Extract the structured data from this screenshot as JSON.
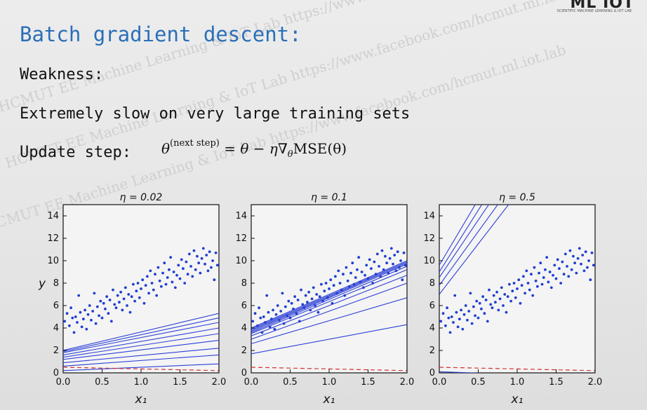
{
  "logo": {
    "text": "ML IOT",
    "sub": "SCIENTIFIC MACHINE LEARNING & IOT LAB"
  },
  "title": "Batch gradient descent:",
  "weakness_label": "Weakness:",
  "weakness_text": "Extremely slow on very large training sets",
  "update_label": "Update step:",
  "formula": {
    "lhs": "θ",
    "sup": "(next step)",
    "rhs": "= θ − η∇",
    "sub": "θ",
    "tail": "MSE(θ)"
  },
  "watermark": [
    "HCMUT EE Machine Learning & IoT Lab https://www.facebook.com/hcmut.ml.iot.lab"
  ],
  "chart_data": [
    {
      "type": "scatter",
      "title": "η = 0.02",
      "xlabel": "x₁",
      "ylabel": "y",
      "xlim": [
        0,
        2
      ],
      "ylim": [
        0,
        15
      ],
      "xticks": [
        "0.0",
        "0.5",
        "1.0",
        "1.5",
        "2.0"
      ],
      "yticks": [
        "0",
        "2",
        "4",
        "6",
        "8",
        "10",
        "12",
        "14"
      ],
      "initial_line": {
        "y0": 0.5,
        "y1": 0.2
      },
      "lines": [
        {
          "y0": 0.2,
          "y1": 0.8
        },
        {
          "y0": 0.6,
          "y1": 1.6
        },
        {
          "y0": 0.9,
          "y1": 2.2
        },
        {
          "y0": 1.2,
          "y1": 2.9
        },
        {
          "y0": 1.4,
          "y1": 3.5
        },
        {
          "y0": 1.6,
          "y1": 4.0
        },
        {
          "y0": 1.8,
          "y1": 4.5
        },
        {
          "y0": 1.9,
          "y1": 4.9
        },
        {
          "y0": 2.0,
          "y1": 5.3
        }
      ]
    },
    {
      "type": "scatter",
      "title": "η = 0.1",
      "xlabel": "x₁",
      "ylabel": "",
      "xlim": [
        0,
        2
      ],
      "ylim": [
        0,
        15
      ],
      "xticks": [
        "0.0",
        "0.5",
        "1.0",
        "1.5",
        "2.0"
      ],
      "yticks": [
        "0",
        "2",
        "4",
        "6",
        "8",
        "10",
        "12",
        "14"
      ],
      "initial_line": {
        "y0": 0.5,
        "y1": 0.2
      },
      "lines": [
        {
          "y0": 1.7,
          "y1": 4.3
        },
        {
          "y0": 2.6,
          "y1": 6.7
        },
        {
          "y0": 3.0,
          "y1": 8.0
        },
        {
          "y0": 3.3,
          "y1": 8.7
        },
        {
          "y0": 3.5,
          "y1": 9.2
        },
        {
          "y0": 3.6,
          "y1": 9.5
        },
        {
          "y0": 3.7,
          "y1": 9.7
        },
        {
          "y0": 3.8,
          "y1": 9.8
        },
        {
          "y0": 3.9,
          "y1": 9.9
        },
        {
          "y0": 4.0,
          "y1": 10.0
        }
      ]
    },
    {
      "type": "scatter",
      "title": "η = 0.5",
      "xlabel": "x₁",
      "ylabel": "",
      "xlim": [
        0,
        2
      ],
      "ylim": [
        0,
        15
      ],
      "xticks": [
        "0.0",
        "0.5",
        "1.0",
        "1.5",
        "2.0"
      ],
      "yticks": [
        "0",
        "2",
        "4",
        "6",
        "8",
        "10",
        "12",
        "14"
      ],
      "initial_line": {
        "y0": 0.5,
        "y1": 0.2
      },
      "lines": [
        {
          "y0": 7.0,
          "y1": 25.0
        },
        {
          "y0": 7.8,
          "y1": 27.0
        },
        {
          "y0": 8.5,
          "y1": 29.0
        },
        {
          "y0": 9.0,
          "y1": 31.0
        },
        {
          "y0": 9.6,
          "y1": 33.0
        },
        {
          "y0": 0.1,
          "y1": -0.4
        }
      ]
    }
  ],
  "scatter_points": [
    [
      0.02,
      4.6
    ],
    [
      0.05,
      5.3
    ],
    [
      0.08,
      4.2
    ],
    [
      0.1,
      5.8
    ],
    [
      0.12,
      4.9
    ],
    [
      0.14,
      3.6
    ],
    [
      0.16,
      5.0
    ],
    [
      0.18,
      4.5
    ],
    [
      0.2,
      6.9
    ],
    [
      0.22,
      5.4
    ],
    [
      0.24,
      4.1
    ],
    [
      0.26,
      4.8
    ],
    [
      0.28,
      5.6
    ],
    [
      0.3,
      3.9
    ],
    [
      0.32,
      5.2
    ],
    [
      0.34,
      6.0
    ],
    [
      0.36,
      4.7
    ],
    [
      0.38,
      5.5
    ],
    [
      0.4,
      7.1
    ],
    [
      0.42,
      4.4
    ],
    [
      0.44,
      5.9
    ],
    [
      0.46,
      5.1
    ],
    [
      0.48,
      6.4
    ],
    [
      0.5,
      4.9
    ],
    [
      0.52,
      6.2
    ],
    [
      0.54,
      5.7
    ],
    [
      0.56,
      6.8
    ],
    [
      0.58,
      5.3
    ],
    [
      0.6,
      6.5
    ],
    [
      0.62,
      4.6
    ],
    [
      0.64,
      7.4
    ],
    [
      0.66,
      6.1
    ],
    [
      0.68,
      5.8
    ],
    [
      0.7,
      6.9
    ],
    [
      0.72,
      6.3
    ],
    [
      0.74,
      7.2
    ],
    [
      0.76,
      5.6
    ],
    [
      0.78,
      6.6
    ],
    [
      0.8,
      7.6
    ],
    [
      0.82,
      6.0
    ],
    [
      0.84,
      7.0
    ],
    [
      0.86,
      5.4
    ],
    [
      0.88,
      6.8
    ],
    [
      0.9,
      7.9
    ],
    [
      0.92,
      6.4
    ],
    [
      0.94,
      7.3
    ],
    [
      0.96,
      8.0
    ],
    [
      0.98,
      6.7
    ],
    [
      1.0,
      7.5
    ],
    [
      1.02,
      8.3
    ],
    [
      1.04,
      6.2
    ],
    [
      1.06,
      7.8
    ],
    [
      1.08,
      8.6
    ],
    [
      1.1,
      7.1
    ],
    [
      1.12,
      9.1
    ],
    [
      1.14,
      8.0
    ],
    [
      1.16,
      7.4
    ],
    [
      1.18,
      8.8
    ],
    [
      1.2,
      6.9
    ],
    [
      1.22,
      9.4
    ],
    [
      1.24,
      8.2
    ],
    [
      1.26,
      7.7
    ],
    [
      1.28,
      8.9
    ],
    [
      1.3,
      9.8
    ],
    [
      1.32,
      7.9
    ],
    [
      1.34,
      8.5
    ],
    [
      1.36,
      9.2
    ],
    [
      1.38,
      10.3
    ],
    [
      1.4,
      8.1
    ],
    [
      1.42,
      9.0
    ],
    [
      1.44,
      7.6
    ],
    [
      1.46,
      8.7
    ],
    [
      1.48,
      9.6
    ],
    [
      1.5,
      8.4
    ],
    [
      1.52,
      10.1
    ],
    [
      1.54,
      9.3
    ],
    [
      1.56,
      8.0
    ],
    [
      1.58,
      9.9
    ],
    [
      1.6,
      8.8
    ],
    [
      1.62,
      10.6
    ],
    [
      1.64,
      9.5
    ],
    [
      1.66,
      8.6
    ],
    [
      1.68,
      10.9
    ],
    [
      1.7,
      9.2
    ],
    [
      1.72,
      10.4
    ],
    [
      1.74,
      9.8
    ],
    [
      1.76,
      8.9
    ],
    [
      1.78,
      10.2
    ],
    [
      1.8,
      11.1
    ],
    [
      1.82,
      9.7
    ],
    [
      1.84,
      10.5
    ],
    [
      1.86,
      9.1
    ],
    [
      1.88,
      10.8
    ],
    [
      1.9,
      9.4
    ],
    [
      1.92,
      10.0
    ],
    [
      1.94,
      8.3
    ],
    [
      1.96,
      10.7
    ],
    [
      1.98,
      9.6
    ]
  ]
}
